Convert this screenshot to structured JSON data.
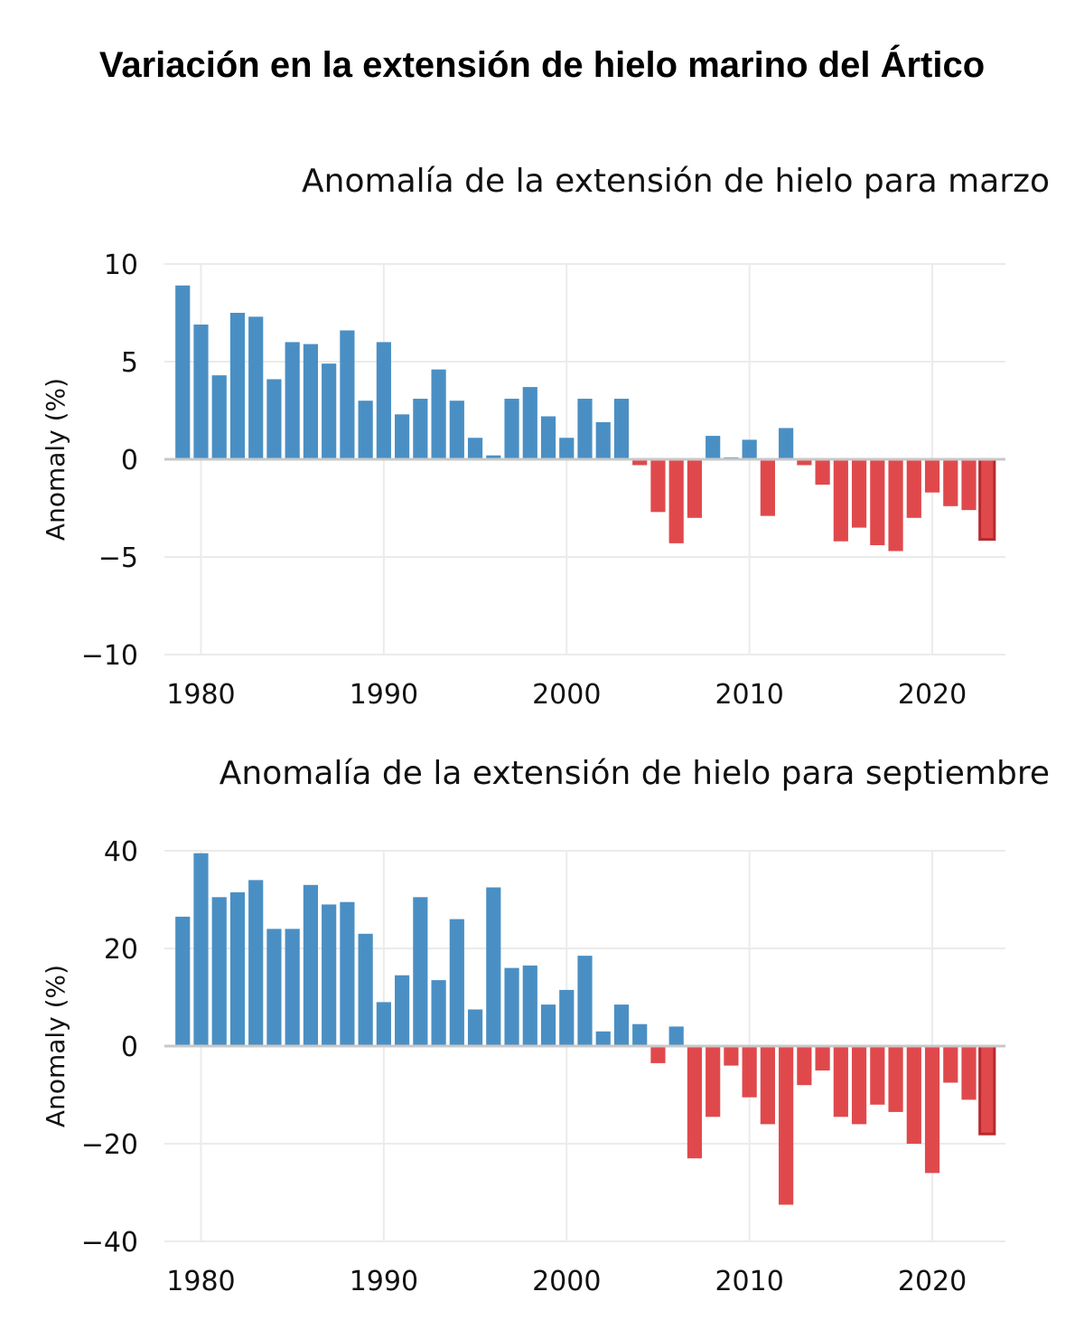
{
  "title": "Variación en la extensión de hielo marino del Ártico",
  "colors": {
    "positive": "#4a8fc4",
    "negative": "#e0494c",
    "highlight": "#b52a2e",
    "grid": "#ebebeb",
    "zero_line": "#c8c8c8"
  },
  "chart_data": [
    {
      "type": "bar",
      "title": "Anomalía de la extensión de hielo para marzo",
      "xlabel": "",
      "ylabel": "Anomaly (%)",
      "xlim": [
        1978,
        2024
      ],
      "ylim": [
        -10,
        10
      ],
      "xticks": [
        1980,
        1990,
        2000,
        2010,
        2020
      ],
      "yticks": [
        10,
        5,
        0,
        -5,
        -10
      ],
      "ytick_labels": [
        "10",
        "5",
        "0",
        "−5",
        "−10"
      ],
      "highlight_year": 2023,
      "x": [
        1979,
        1980,
        1981,
        1982,
        1983,
        1984,
        1985,
        1986,
        1987,
        1988,
        1989,
        1990,
        1991,
        1992,
        1993,
        1994,
        1995,
        1996,
        1997,
        1998,
        1999,
        2000,
        2001,
        2002,
        2003,
        2004,
        2005,
        2006,
        2007,
        2008,
        2009,
        2010,
        2011,
        2012,
        2013,
        2014,
        2015,
        2016,
        2017,
        2018,
        2019,
        2020,
        2021,
        2022,
        2023
      ],
      "values": [
        8.9,
        6.9,
        4.3,
        7.5,
        7.3,
        4.1,
        6.0,
        5.9,
        4.9,
        6.6,
        3.0,
        6.0,
        2.3,
        3.1,
        4.6,
        3.0,
        1.1,
        0.2,
        3.1,
        3.7,
        2.2,
        1.1,
        3.1,
        1.9,
        3.1,
        -0.3,
        -2.7,
        -4.3,
        -3.0,
        1.2,
        0.1,
        1.0,
        -2.9,
        1.6,
        -0.3,
        -1.3,
        -4.2,
        -3.5,
        -4.4,
        -4.7,
        -3.0,
        -1.7,
        -2.4,
        -2.6,
        -4.1
      ]
    },
    {
      "type": "bar",
      "title": "Anomalía de la extensión de hielo para septiembre",
      "xlabel": "",
      "ylabel": "Anomaly (%)",
      "xlim": [
        1978,
        2024
      ],
      "ylim": [
        -40,
        40
      ],
      "xticks": [
        1980,
        1990,
        2000,
        2010,
        2020
      ],
      "yticks": [
        40,
        20,
        0,
        -20,
        -40
      ],
      "ytick_labels": [
        "40",
        "20",
        "0",
        "−20",
        "−40"
      ],
      "highlight_year": 2023,
      "x": [
        1979,
        1980,
        1981,
        1982,
        1983,
        1984,
        1985,
        1986,
        1987,
        1988,
        1989,
        1990,
        1991,
        1992,
        1993,
        1994,
        1995,
        1996,
        1997,
        1998,
        1999,
        2000,
        2001,
        2002,
        2003,
        2004,
        2005,
        2006,
        2007,
        2008,
        2009,
        2010,
        2011,
        2012,
        2013,
        2014,
        2015,
        2016,
        2017,
        2018,
        2019,
        2020,
        2021,
        2022,
        2023
      ],
      "values": [
        26.5,
        39.5,
        30.5,
        31.5,
        34.0,
        24.0,
        24.0,
        33.0,
        29.0,
        29.5,
        23.0,
        9.0,
        14.5,
        30.5,
        13.5,
        26.0,
        7.5,
        32.5,
        16.0,
        16.5,
        8.5,
        11.5,
        18.5,
        3.0,
        8.5,
        4.5,
        -3.5,
        4.0,
        -23.0,
        -14.5,
        -4.0,
        -10.5,
        -16.0,
        -32.5,
        -8.0,
        -5.0,
        -14.5,
        -16.0,
        -12.0,
        -13.5,
        -20.0,
        -26.0,
        -7.5,
        -11.0,
        -18.0
      ]
    }
  ]
}
